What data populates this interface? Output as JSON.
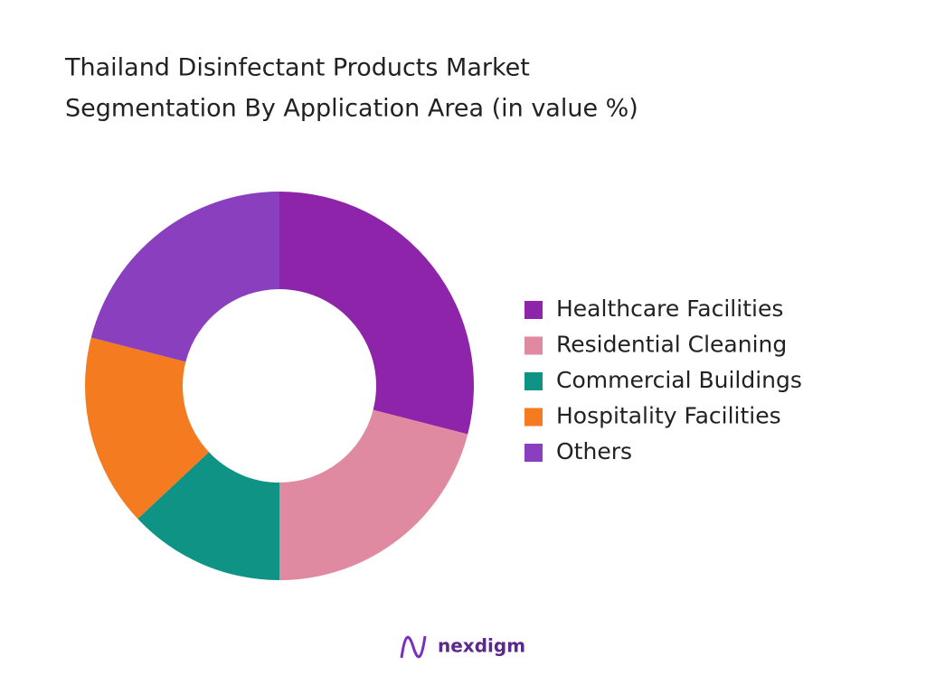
{
  "chart_data": {
    "type": "donut",
    "title": [
      "Thailand Disinfectant Products Market",
      "Segmentation By Application Area  (in value %)"
    ],
    "categories": [
      "Healthcare Facilities",
      "Residential Cleaning",
      "Commercial Buildings",
      "Hospitality Facilities",
      "Others"
    ],
    "values": [
      29,
      21,
      13,
      16,
      21
    ],
    "colors": [
      "#8e24aa",
      "#df8aa0",
      "#0e9384",
      "#f47b20",
      "#8a3fbf"
    ],
    "legend": "right"
  },
  "brand": "nexdigm"
}
